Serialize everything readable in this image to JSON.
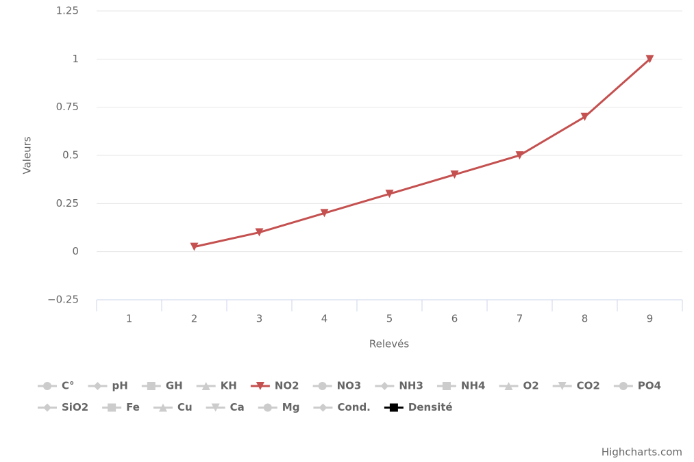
{
  "chart_data": {
    "type": "line",
    "xlabel": "Relevés",
    "ylabel": "Valeurs",
    "categories": [
      "1",
      "2",
      "3",
      "4",
      "5",
      "6",
      "7",
      "8",
      "9"
    ],
    "ylim": [
      -0.25,
      1.25
    ],
    "yticks": [
      {
        "value": -0.25,
        "label": "−0.25"
      },
      0,
      0.25,
      0.5,
      0.75,
      1,
      1.25
    ],
    "grid": true,
    "legend": "bottom-left",
    "hidden_color": "#cccccc",
    "series": [
      {
        "name": "C°",
        "symbol": "circle",
        "visible": false
      },
      {
        "name": "pH",
        "symbol": "diamond",
        "visible": false
      },
      {
        "name": "GH",
        "symbol": "square",
        "visible": false
      },
      {
        "name": "KH",
        "symbol": "triangle",
        "visible": false
      },
      {
        "name": "NO2",
        "symbol": "triangle-down",
        "visible": true,
        "color": "#c4504f",
        "values": [
          null,
          0.025,
          0.1,
          0.2,
          0.3,
          0.4,
          0.5,
          0.7,
          1
        ]
      },
      {
        "name": "NO3",
        "symbol": "circle",
        "visible": false
      },
      {
        "name": "NH3",
        "symbol": "diamond",
        "visible": false
      },
      {
        "name": "NH4",
        "symbol": "square",
        "visible": false
      },
      {
        "name": "O2",
        "symbol": "triangle",
        "visible": false
      },
      {
        "name": "CO2",
        "symbol": "triangle-down",
        "visible": false
      },
      {
        "name": "PO4",
        "symbol": "circle",
        "visible": false
      },
      {
        "name": "SiO2",
        "symbol": "diamond",
        "visible": false
      },
      {
        "name": "Fe",
        "symbol": "square",
        "visible": false
      },
      {
        "name": "Cu",
        "symbol": "triangle",
        "visible": false
      },
      {
        "name": "Ca",
        "symbol": "triangle-down",
        "visible": false
      },
      {
        "name": "Mg",
        "symbol": "circle",
        "visible": false
      },
      {
        "name": "Cond.",
        "symbol": "diamond",
        "visible": false
      },
      {
        "name": "Densité",
        "symbol": "square",
        "visible": true,
        "color": "#000000"
      }
    ],
    "credits": "Highcharts.com"
  }
}
